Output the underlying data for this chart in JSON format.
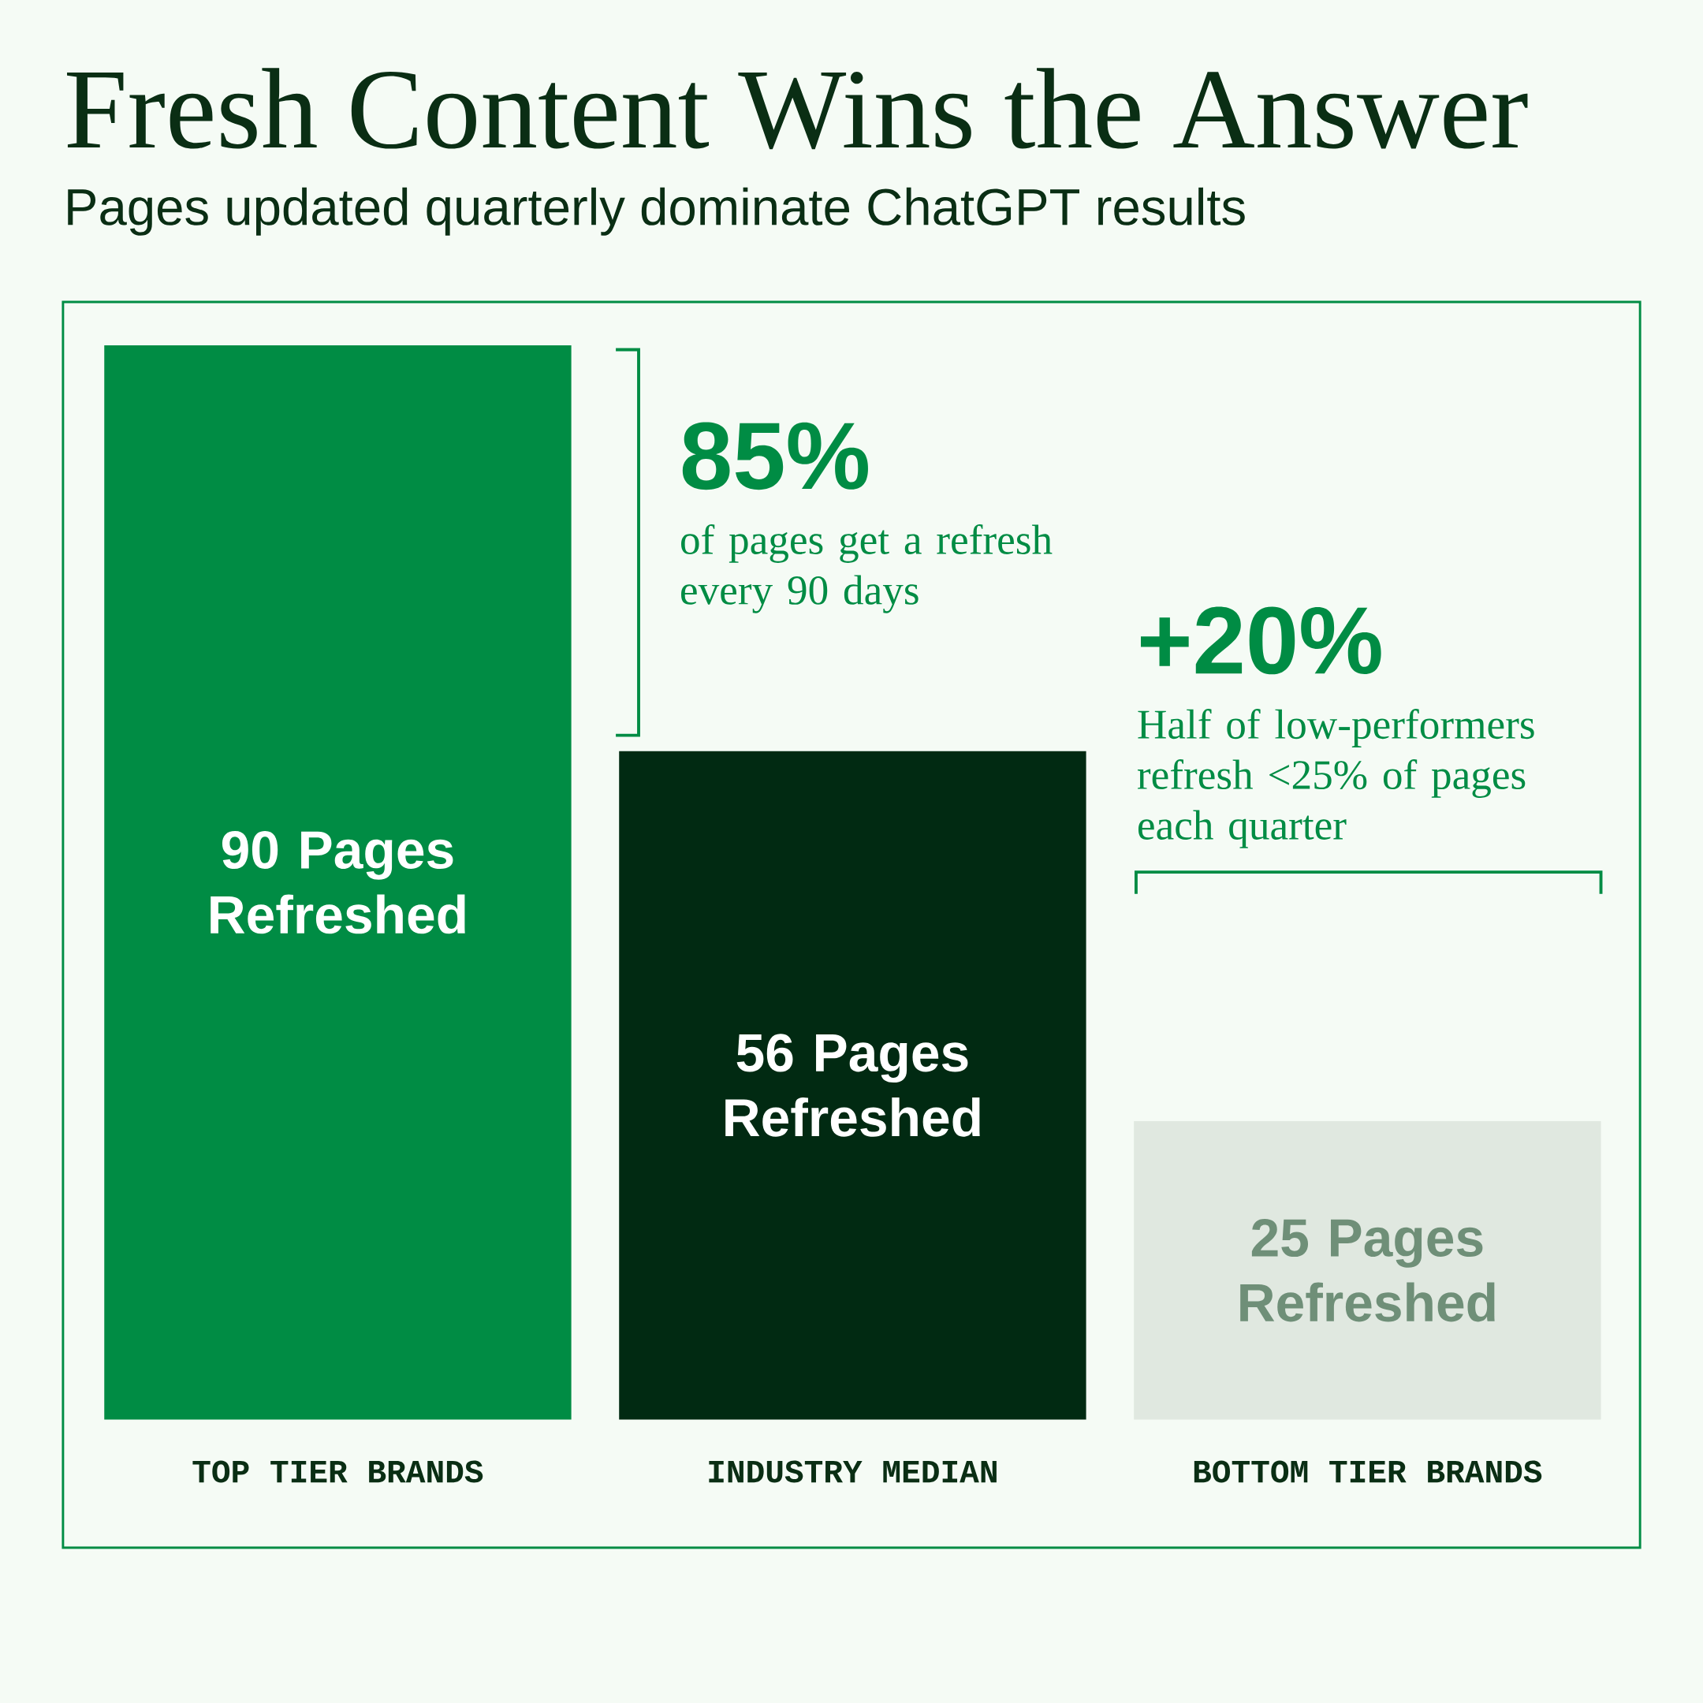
{
  "chart_data": {
    "type": "bar",
    "title": "Fresh Content Wins the Answer",
    "subtitle": "Pages updated quarterly dominate ChatGPT results",
    "categories": [
      "TOP TIER BRANDS",
      "INDUSTRY MEDIAN",
      "BOTTOM TIER BRANDS"
    ],
    "values": [
      90,
      56,
      25
    ],
    "colors": [
      "#008c44",
      "#012a12",
      "#e0e8e0"
    ],
    "value_labels": [
      "90 Pages Refreshed",
      "56 Pages Refreshed",
      "25 Pages Refreshed"
    ],
    "annotations": [
      "85%",
      "of pages get a refresh every 90 days",
      "+20%",
      "Half of low-performers refresh <25% of pages each quarter"
    ]
  }
}
